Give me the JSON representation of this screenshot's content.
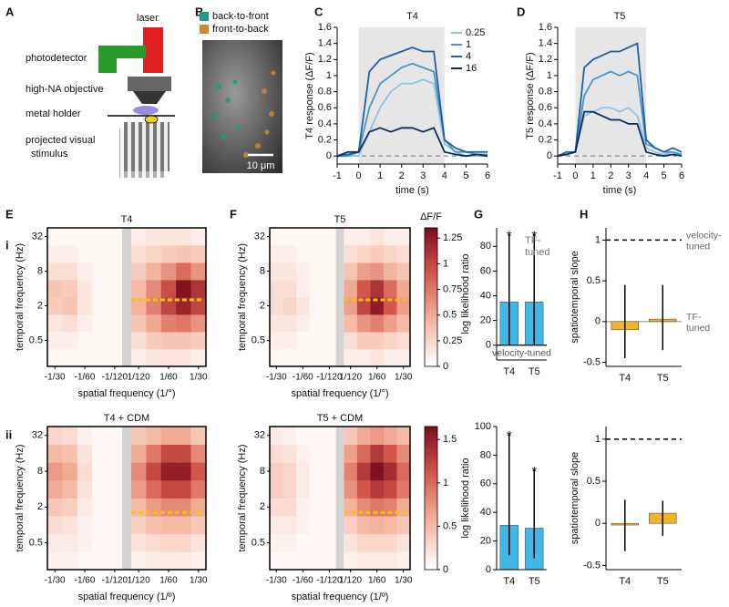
{
  "panel_labels": [
    "A",
    "B",
    "C",
    "D",
    "E",
    "F",
    "G",
    "H",
    "i",
    "ii"
  ],
  "diagram": {
    "laser": "laser",
    "photodetector": "photodetector",
    "objective": "high-NA objective",
    "holder": "metal holder",
    "stimulus": [
      "projected visual",
      "stimulus"
    ]
  },
  "image": {
    "legend": [
      "back-to-front",
      "front-to-back"
    ],
    "legend_colors": [
      "#1b9c86",
      "#c98a2c"
    ],
    "scale_bar": "10 μm"
  },
  "colormap": [
    "#ffffff",
    "#f4b39c",
    "#d4574c",
    "#7a0a1c"
  ],
  "chart_data": [
    {
      "type": "line",
      "title": "T4",
      "xlabel": "time (s)",
      "ylabel": "T4 response (ΔF/F)",
      "x": [
        -1,
        -0.5,
        0,
        0.5,
        1,
        1.5,
        2,
        2.5,
        3,
        3.5,
        4,
        4.5,
        5,
        5.5,
        6
      ],
      "xlim": [
        -1,
        6
      ],
      "ylim": [
        -0.1,
        1.6
      ],
      "xticks": [
        -1,
        0,
        1,
        2,
        3,
        4,
        5,
        6
      ],
      "yticks": [
        0,
        0.2,
        0.4,
        0.6,
        0.8,
        1,
        1.2,
        1.4,
        1.6
      ],
      "shaded_span": [
        0,
        4
      ],
      "baseline": 0,
      "legend": "upper right",
      "series": [
        {
          "name": "0.25",
          "color": "#8ec3e6",
          "values": [
            0,
            0,
            0,
            0.3,
            0.6,
            0.8,
            0.9,
            0.9,
            0.95,
            0.9,
            0.15,
            0.05,
            0,
            0,
            0
          ]
        },
        {
          "name": "1",
          "color": "#4a95cc",
          "values": [
            0,
            0,
            0.05,
            0.6,
            0.9,
            1.0,
            1.1,
            1.15,
            1.1,
            1.05,
            0.2,
            0.05,
            0.05,
            0.02,
            0.02
          ]
        },
        {
          "name": "4",
          "color": "#1f5fa8",
          "values": [
            0,
            0.02,
            0.05,
            1.05,
            1.2,
            1.25,
            1.3,
            1.35,
            1.3,
            1.3,
            0.2,
            0.1,
            0.05,
            0.05,
            0.05
          ]
        },
        {
          "name": "16",
          "color": "#0c2a5c",
          "values": [
            0,
            0.05,
            0.05,
            0.3,
            0.35,
            0.3,
            0.35,
            0.35,
            0.3,
            0.35,
            0.05,
            0.02,
            0,
            0.02,
            0
          ]
        }
      ]
    },
    {
      "type": "line",
      "title": "T5",
      "xlabel": "time (s)",
      "ylabel": "T5 response (ΔF/F)",
      "x": [
        -1,
        -0.5,
        0,
        0.5,
        1,
        1.5,
        2,
        2.5,
        3,
        3.5,
        4,
        4.5,
        5,
        5.5,
        6
      ],
      "xlim": [
        -1,
        6
      ],
      "ylim": [
        -0.1,
        1.6
      ],
      "xticks": [
        -1,
        0,
        1,
        2,
        3,
        4,
        5,
        6
      ],
      "yticks": [
        0,
        0.2,
        0.4,
        0.6,
        0.8,
        1,
        1.2,
        1.4,
        1.6
      ],
      "shaded_span": [
        0,
        4
      ],
      "baseline": 0,
      "series": [
        {
          "color": "#8ec3e6",
          "values": [
            0,
            0.02,
            0.05,
            0.5,
            0.55,
            0.6,
            0.6,
            0.55,
            0.6,
            0.5,
            0.1,
            0.05,
            0.02,
            0.05,
            0
          ]
        },
        {
          "color": "#4a95cc",
          "values": [
            0,
            0.02,
            0.05,
            0.75,
            0.95,
            1.0,
            1.05,
            1.0,
            1.05,
            1.0,
            0.15,
            0.1,
            0.05,
            0.05,
            0.02
          ]
        },
        {
          "color": "#1f5fa8",
          "values": [
            0,
            0.05,
            0.05,
            1.1,
            1.2,
            1.25,
            1.3,
            1.3,
            1.35,
            1.4,
            0.2,
            0.1,
            0.05,
            0.1,
            0.05
          ]
        },
        {
          "color": "#0c2a5c",
          "values": [
            0,
            0.02,
            0.05,
            0.55,
            0.55,
            0.5,
            0.45,
            0.45,
            0.4,
            0.4,
            0.05,
            0.02,
            0,
            0.02,
            0
          ]
        }
      ]
    },
    {
      "type": "heatmap",
      "title": "T4",
      "xlabel": "spatial frequency (1/°)",
      "ylabel": "temporal frequency (Hz)",
      "x_categories": [
        "-1/30",
        null,
        "-1/60",
        null,
        "-1/120",
        "1/120",
        null,
        "1/60",
        null,
        "1/30"
      ],
      "y_categories": [
        null,
        0.5,
        null,
        2,
        null,
        8,
        null,
        32
      ],
      "clim": [
        0,
        1.35
      ],
      "values": [
        [
          0.05,
          0.05,
          0.05,
          0.05,
          0.05,
          0.1,
          0.15,
          0.15,
          0.15,
          0.1
        ],
        [
          0.1,
          0.1,
          0.05,
          0.05,
          0.05,
          0.2,
          0.3,
          0.35,
          0.35,
          0.3
        ],
        [
          0.15,
          0.2,
          0.1,
          0.05,
          0.05,
          0.35,
          0.5,
          0.7,
          0.75,
          0.6
        ],
        [
          0.3,
          0.35,
          0.15,
          0.05,
          0.05,
          0.45,
          0.7,
          1.0,
          1.2,
          1.0
        ],
        [
          0.35,
          0.3,
          0.15,
          0.05,
          0.05,
          0.4,
          0.65,
          0.95,
          1.3,
          1.1
        ],
        [
          0.2,
          0.2,
          0.1,
          0.05,
          0.05,
          0.3,
          0.45,
          0.6,
          0.8,
          0.6
        ],
        [
          0.1,
          0.1,
          0.05,
          0.05,
          0.05,
          0.2,
          0.25,
          0.3,
          0.35,
          0.3
        ],
        [
          0.05,
          0.05,
          0.05,
          0.05,
          0.05,
          0.1,
          0.15,
          0.15,
          0.15,
          0.1
        ]
      ]
    },
    {
      "type": "heatmap",
      "title": "T5",
      "xlabel": "spatial frequency (1/°)",
      "ylabel": "temporal frequency (Hz)",
      "x_categories": [
        "-1/30",
        null,
        "-1/60",
        null,
        "-1/120",
        "1/120",
        null,
        "1/60",
        null,
        "1/30"
      ],
      "y_categories": [
        null,
        0.5,
        null,
        2,
        null,
        8,
        null,
        32
      ],
      "clim": [
        0,
        1.35
      ],
      "colorbar_ticks": [
        0,
        0.25,
        0.5,
        0.75,
        1,
        1.25
      ],
      "colorbar_label": "ΔF/F",
      "values": [
        [
          0.05,
          0.05,
          0.05,
          0.05,
          0.05,
          0.1,
          0.1,
          0.15,
          0.1,
          0.1
        ],
        [
          0.1,
          0.1,
          0.05,
          0.05,
          0.05,
          0.2,
          0.3,
          0.3,
          0.25,
          0.2
        ],
        [
          0.15,
          0.15,
          0.1,
          0.05,
          0.05,
          0.4,
          0.6,
          0.7,
          0.55,
          0.4
        ],
        [
          0.2,
          0.25,
          0.15,
          0.05,
          0.05,
          0.55,
          1.0,
          1.25,
          0.9,
          0.55
        ],
        [
          0.2,
          0.2,
          0.1,
          0.05,
          0.05,
          0.5,
          0.9,
          1.1,
          0.8,
          0.5
        ],
        [
          0.15,
          0.15,
          0.1,
          0.05,
          0.05,
          0.35,
          0.55,
          0.6,
          0.45,
          0.35
        ],
        [
          0.1,
          0.1,
          0.05,
          0.05,
          0.05,
          0.2,
          0.25,
          0.3,
          0.25,
          0.2
        ],
        [
          0.05,
          0.05,
          0.05,
          0.05,
          0.05,
          0.1,
          0.1,
          0.15,
          0.1,
          0.1
        ]
      ]
    },
    {
      "type": "bar",
      "ylabel": "log likelihood ratio",
      "categories": [
        "T4",
        "T5"
      ],
      "color": "#3fb8e8",
      "values": [
        35,
        35
      ],
      "error_low": [
        0,
        0
      ],
      "error_high": [
        90,
        90
      ],
      "stars": [
        "*",
        "*"
      ],
      "ylim": [
        -12,
        95
      ],
      "yticks": [
        0,
        20,
        40,
        60,
        80
      ],
      "top_note": "TF-tuned",
      "bottom_note": "velocity-tuned"
    },
    {
      "type": "bar",
      "ylabel": "spatiotemporal slope",
      "categories": [
        "T4",
        "T5"
      ],
      "color": "#f0b429",
      "values": [
        -0.1,
        0.03
      ],
      "error_low": [
        -0.45,
        -0.35
      ],
      "error_high": [
        0.45,
        0.45
      ],
      "ylim": [
        -0.55,
        1.15
      ],
      "yticks": [
        -0.5,
        0,
        0.5,
        1
      ],
      "hlines": [
        {
          "value": 1,
          "label": "velocity-tuned",
          "style": "dashed"
        },
        {
          "value": 0,
          "label": "TF-tuned",
          "style": "solid"
        }
      ]
    },
    {
      "type": "heatmap",
      "title": "T4 + CDM",
      "xlabel": "spatial frequency (1/º)",
      "ylabel": "temporal frequency (Hz)",
      "x_categories": [
        "-1/30",
        null,
        "-1/60",
        null,
        "-1/120",
        "1/120",
        null,
        "1/60",
        null,
        "1/30"
      ],
      "y_categories": [
        null,
        0.5,
        null,
        2,
        null,
        8,
        null,
        32
      ],
      "clim": [
        0,
        1.65
      ],
      "values": [
        [
          0.1,
          0.1,
          0.05,
          0.05,
          0.05,
          0.1,
          0.15,
          0.15,
          0.15,
          0.1
        ],
        [
          0.15,
          0.15,
          0.1,
          0.05,
          0.05,
          0.2,
          0.25,
          0.3,
          0.3,
          0.2
        ],
        [
          0.25,
          0.2,
          0.1,
          0.05,
          0.05,
          0.35,
          0.45,
          0.5,
          0.5,
          0.4
        ],
        [
          0.4,
          0.35,
          0.15,
          0.05,
          0.05,
          0.5,
          0.7,
          0.8,
          0.8,
          0.6
        ],
        [
          0.6,
          0.5,
          0.2,
          0.05,
          0.05,
          0.7,
          1.0,
          1.2,
          1.2,
          0.9
        ],
        [
          0.7,
          0.6,
          0.25,
          0.05,
          0.05,
          0.8,
          1.2,
          1.5,
          1.5,
          1.1
        ],
        [
          0.5,
          0.45,
          0.2,
          0.05,
          0.05,
          0.6,
          0.9,
          1.2,
          1.2,
          0.8
        ],
        [
          0.3,
          0.25,
          0.1,
          0.05,
          0.05,
          0.4,
          0.5,
          0.6,
          0.6,
          0.4
        ]
      ]
    },
    {
      "type": "heatmap",
      "title": "T5 + CDM",
      "xlabel": "spatial frequency (1/º)",
      "ylabel": "temporal frequency (Hz)",
      "x_categories": [
        "-1/30",
        null,
        "-1/60",
        null,
        "-1/120",
        "1/120",
        null,
        "1/60",
        null,
        "1/30"
      ],
      "y_categories": [
        null,
        0.5,
        null,
        2,
        null,
        8,
        null,
        32
      ],
      "clim": [
        0,
        1.65
      ],
      "colorbar_ticks": [
        0,
        0.5,
        1,
        1.5
      ],
      "values": [
        [
          0.05,
          0.05,
          0.05,
          0.05,
          0.05,
          0.1,
          0.15,
          0.15,
          0.15,
          0.1
        ],
        [
          0.1,
          0.1,
          0.05,
          0.05,
          0.05,
          0.2,
          0.3,
          0.3,
          0.3,
          0.2
        ],
        [
          0.15,
          0.15,
          0.1,
          0.05,
          0.05,
          0.35,
          0.5,
          0.55,
          0.5,
          0.4
        ],
        [
          0.25,
          0.25,
          0.1,
          0.05,
          0.05,
          0.55,
          0.8,
          0.9,
          0.85,
          0.6
        ],
        [
          0.35,
          0.3,
          0.15,
          0.05,
          0.05,
          0.75,
          1.1,
          1.3,
          1.2,
          0.9
        ],
        [
          0.35,
          0.3,
          0.15,
          0.05,
          0.05,
          0.85,
          1.3,
          1.6,
          1.4,
          1.0
        ],
        [
          0.25,
          0.2,
          0.1,
          0.05,
          0.05,
          0.65,
          1.0,
          1.3,
          1.1,
          0.8
        ],
        [
          0.15,
          0.1,
          0.05,
          0.05,
          0.05,
          0.4,
          0.6,
          0.7,
          0.6,
          0.5
        ]
      ]
    },
    {
      "type": "bar",
      "ylabel": "log likelihood ratio",
      "categories": [
        "T4",
        "T5"
      ],
      "color": "#3fb8e8",
      "values": [
        31,
        29
      ],
      "error_low": [
        10,
        8
      ],
      "error_high": [
        95,
        70
      ],
      "stars": [
        "*",
        "*"
      ],
      "ylim": [
        0,
        100
      ],
      "yticks": [
        0,
        20,
        40,
        60,
        80,
        100
      ]
    },
    {
      "type": "bar",
      "ylabel": "spatiotemporal slope",
      "categories": [
        "T4",
        "T5"
      ],
      "color": "#f0b429",
      "values": [
        -0.02,
        0.12
      ],
      "error_low": [
        -0.33,
        -0.15
      ],
      "error_high": [
        0.28,
        0.27
      ],
      "ylim": [
        -0.55,
        1.15
      ],
      "yticks": [
        -0.5,
        0,
        0.5,
        1
      ],
      "hlines": [
        {
          "value": 1,
          "style": "dashed"
        }
      ]
    }
  ]
}
